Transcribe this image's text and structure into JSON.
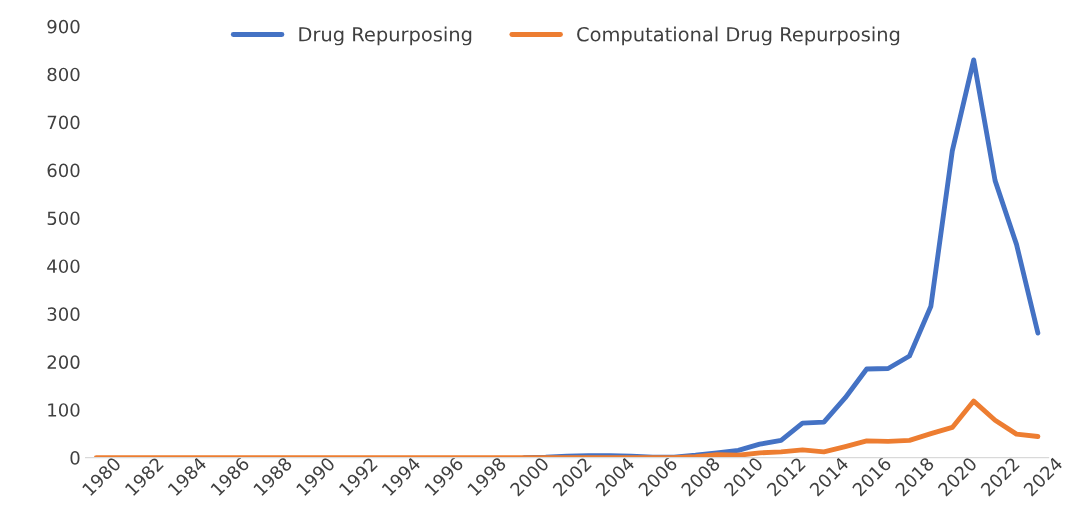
{
  "chart_data": {
    "type": "line",
    "categories": [
      "1980",
      null,
      "1982",
      null,
      "1984",
      null,
      "1986",
      null,
      "1988",
      null,
      "1990",
      null,
      "1992",
      null,
      "1994",
      null,
      "1996",
      null,
      "1998",
      null,
      "2000",
      null,
      "2002",
      null,
      "2004",
      null,
      "2006",
      null,
      "2008",
      null,
      "2010",
      null,
      "2012",
      null,
      "2014",
      null,
      "2016",
      null,
      "2018",
      null,
      "2020",
      null,
      "2022",
      null,
      "2024"
    ],
    "series": [
      {
        "name": "Drug Repurposing",
        "color": "#4472c4",
        "values": [
          null,
          null,
          null,
          null,
          null,
          null,
          null,
          null,
          null,
          null,
          null,
          null,
          null,
          null,
          null,
          null,
          null,
          null,
          null,
          null,
          0,
          1,
          3,
          4,
          4,
          3,
          1,
          1,
          5,
          10,
          15,
          28,
          36,
          72,
          74,
          125,
          185,
          186,
          212,
          316,
          640,
          830,
          578,
          445,
          260
        ]
      },
      {
        "name": "Computational Drug Repurposing",
        "color": "#ed7d31",
        "values": [
          0,
          0,
          0,
          0,
          0,
          0,
          0,
          0,
          0,
          0,
          0,
          0,
          0,
          0,
          0,
          0,
          0,
          0,
          0,
          0,
          0,
          0,
          0,
          0,
          0,
          0,
          0,
          0,
          2,
          6,
          5,
          10,
          12,
          16,
          12,
          23,
          35,
          34,
          36,
          50,
          63,
          118,
          78,
          49,
          44
        ]
      }
    ],
    "ylim": [
      0,
      900
    ],
    "yticks": [
      0,
      100,
      200,
      300,
      400,
      500,
      600,
      700,
      800,
      900
    ],
    "grid": false,
    "legend": "top",
    "line_style": "solid",
    "marker": "none"
  }
}
